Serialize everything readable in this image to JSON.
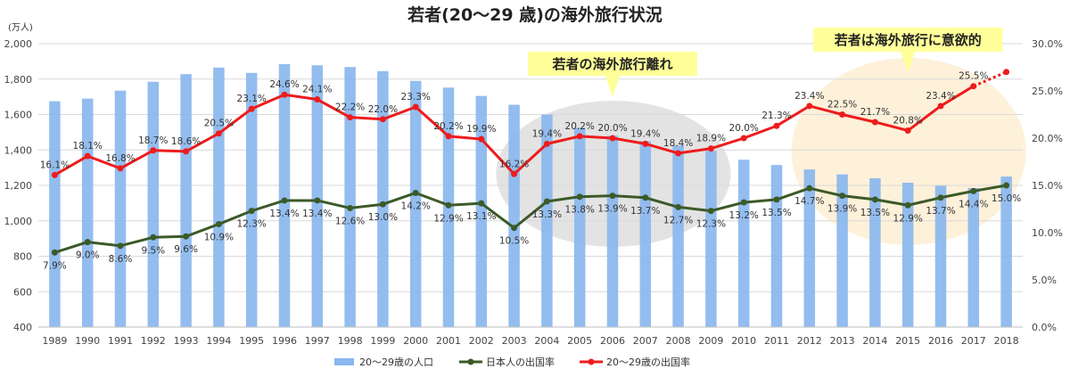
{
  "chart_data": {
    "type": "bar+line",
    "title": "若者(20～29 歳)の海外旅行状況",
    "left_axis_unit": "(万人)",
    "left_ylim": [
      400,
      2000
    ],
    "left_ticks": [
      "400",
      "600",
      "800",
      "1,000",
      "1,200",
      "1,400",
      "1,600",
      "1,800",
      "2,000"
    ],
    "right_ylim": [
      0,
      30
    ],
    "right_ticks": [
      "0.0%",
      "5.0%",
      "10.0%",
      "15.0%",
      "20.0%",
      "25.0%",
      "30.0%"
    ],
    "categories": [
      "1989",
      "1990",
      "1991",
      "1992",
      "1993",
      "1994",
      "1995",
      "1996",
      "1997",
      "1998",
      "1999",
      "2000",
      "2001",
      "2002",
      "2003",
      "2004",
      "2005",
      "2006",
      "2007",
      "2008",
      "2009",
      "2010",
      "2011",
      "2012",
      "2013",
      "2014",
      "2015",
      "2016",
      "2017",
      "2018"
    ],
    "series": [
      {
        "name": "20～29歳の人口",
        "type": "bar",
        "axis": "left",
        "color": "#8ab7ee",
        "values": [
          1675,
          1690,
          1735,
          1785,
          1828,
          1865,
          1835,
          1885,
          1878,
          1868,
          1845,
          1790,
          1752,
          1705,
          1655,
          1600,
          1525,
          1480,
          1450,
          1425,
          1395,
          1345,
          1315,
          1290,
          1262,
          1240,
          1215,
          1198,
          1185,
          1250
        ]
      },
      {
        "name": "日本人の出国率",
        "type": "line",
        "axis": "right",
        "color": "#3c5a28",
        "values": [
          7.9,
          9.0,
          8.6,
          9.5,
          9.6,
          10.9,
          12.3,
          13.4,
          13.4,
          12.6,
          13.0,
          14.2,
          12.9,
          13.1,
          10.5,
          13.3,
          13.8,
          13.9,
          13.7,
          12.7,
          12.3,
          13.2,
          13.5,
          14.7,
          13.9,
          13.5,
          12.9,
          13.7,
          14.4,
          15.0
        ],
        "labels": [
          "7.9%",
          "9.0%",
          "8.6%",
          "9.5%",
          "9.6%",
          "10.9%",
          "12.3%",
          "13.4%",
          "13.4%",
          "12.6%",
          "13.0%",
          "14.2%",
          "12.9%",
          "13.1%",
          "10.5%",
          "13.3%",
          "13.8%",
          "13.9%",
          "13.7%",
          "12.7%",
          "12.3%",
          "13.2%",
          "13.5%",
          "14.7%",
          "13.9%",
          "13.5%",
          "12.9%",
          "13.7%",
          "14.4%",
          "15.0%"
        ]
      },
      {
        "name": "20～29歳の出国率",
        "type": "line",
        "axis": "right",
        "color": "#ee1c1c",
        "values": [
          16.1,
          18.1,
          16.8,
          18.7,
          18.6,
          20.5,
          23.1,
          24.6,
          24.1,
          22.2,
          22.0,
          23.3,
          20.2,
          19.9,
          16.2,
          19.4,
          20.2,
          20.0,
          19.4,
          18.4,
          18.9,
          20.0,
          21.3,
          23.4,
          22.5,
          21.7,
          20.8,
          23.4,
          25.5,
          27.0
        ],
        "labels": [
          "16.1%",
          "18.1%",
          "16.8%",
          "18.7%",
          "18.6%",
          "20.5%",
          "23.1%",
          "24.6%",
          "24.1%",
          "22.2%",
          "22.0%",
          "23.3%",
          "20.2%",
          "19.9%",
          "16.2%",
          "19.4%",
          "20.2%",
          "20.0%",
          "19.4%",
          "18.4%",
          "18.9%",
          "20.0%",
          "21.3%",
          "23.4%",
          "22.5%",
          "21.7%",
          "20.8%",
          "23.4%",
          "25.5%",
          ""
        ]
      }
    ],
    "legend_position": "bottom",
    "annotations": [
      {
        "text": "若者の海外旅行離れ",
        "from": "2003",
        "to": "2009",
        "highlight": "#d9d9d9"
      },
      {
        "text": "若者は海外旅行に意欲的",
        "from": "2012",
        "to": "2018",
        "highlight": "#fde9c6"
      }
    ],
    "callout_fill": "#ffff99"
  }
}
